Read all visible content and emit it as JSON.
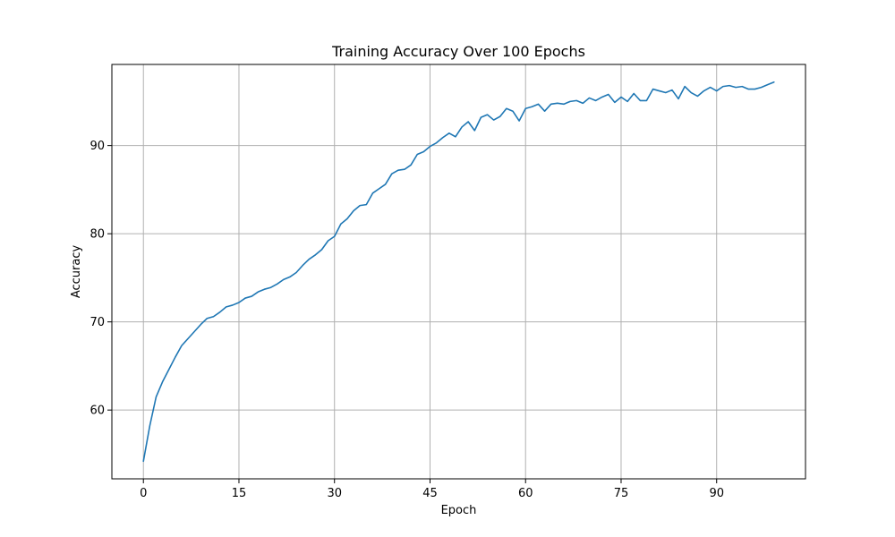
{
  "chart_data": {
    "type": "line",
    "title": "Training Accuracy Over 100 Epochs",
    "xlabel": "Epoch",
    "ylabel": "Accuracy",
    "xlim": [
      -4.95,
      103.95
    ],
    "ylim": [
      52.2,
      99.2
    ],
    "xticks": [
      0,
      15,
      30,
      45,
      60,
      75,
      90
    ],
    "yticks": [
      60,
      70,
      80,
      90
    ],
    "grid": true,
    "series": [
      {
        "color": "#1f77b4",
        "x": [
          0,
          1,
          2,
          3,
          4,
          5,
          6,
          7,
          8,
          9,
          10,
          11,
          12,
          13,
          14,
          15,
          16,
          17,
          18,
          19,
          20,
          21,
          22,
          23,
          24,
          25,
          26,
          27,
          28,
          29,
          30,
          31,
          32,
          33,
          34,
          35,
          36,
          37,
          38,
          39,
          40,
          41,
          42,
          43,
          44,
          45,
          46,
          47,
          48,
          49,
          50,
          51,
          52,
          53,
          54,
          55,
          56,
          57,
          58,
          59,
          60,
          61,
          62,
          63,
          64,
          65,
          66,
          67,
          68,
          69,
          70,
          71,
          72,
          73,
          74,
          75,
          76,
          77,
          78,
          79,
          80,
          81,
          82,
          83,
          84,
          85,
          86,
          87,
          88,
          89,
          90,
          91,
          92,
          93,
          94,
          95,
          96,
          97,
          98,
          99
        ],
        "y": [
          54.2,
          58.2,
          61.5,
          63.2,
          64.6,
          66.0,
          67.3,
          68.1,
          68.9,
          69.7,
          70.4,
          70.6,
          71.1,
          71.7,
          71.9,
          72.2,
          72.7,
          72.9,
          73.4,
          73.7,
          73.9,
          74.3,
          74.8,
          75.1,
          75.6,
          76.4,
          77.1,
          77.6,
          78.2,
          79.2,
          79.7,
          81.1,
          81.7,
          82.6,
          83.2,
          83.3,
          84.6,
          85.1,
          85.6,
          86.8,
          87.2,
          87.3,
          87.8,
          89.0,
          89.3,
          89.9,
          90.3,
          90.9,
          91.4,
          91.0,
          92.1,
          92.7,
          91.7,
          93.2,
          93.5,
          92.9,
          93.3,
          94.2,
          93.9,
          92.8,
          94.2,
          94.4,
          94.7,
          93.9,
          94.7,
          94.8,
          94.7,
          95.0,
          95.1,
          94.8,
          95.4,
          95.1,
          95.5,
          95.8,
          94.9,
          95.5,
          95.0,
          95.9,
          95.1,
          95.1,
          96.4,
          96.2,
          96.0,
          96.3,
          95.3,
          96.7,
          96.0,
          95.6,
          96.2,
          96.6,
          96.2,
          96.7,
          96.8,
          96.6,
          96.7,
          96.4,
          96.4,
          96.6,
          96.9,
          97.2
        ]
      }
    ]
  }
}
